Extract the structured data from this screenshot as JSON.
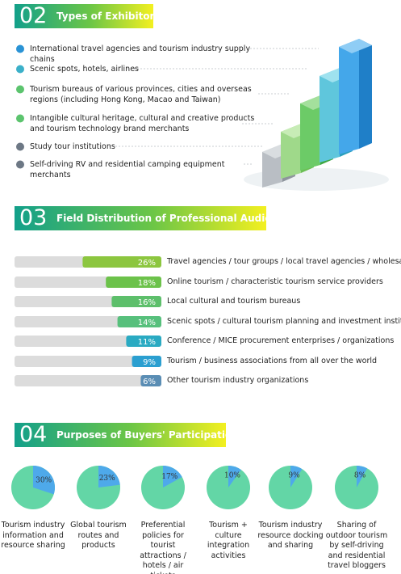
{
  "exhibitors": {
    "number": "02",
    "title": "Types of Exhibitors",
    "items": [
      "International travel agencies and tourism industry supply chains",
      "Scenic spots, hotels, airlines",
      "Tourism bureaus of various provinces, cities and overseas regions (including Hong Kong, Macao and Taiwan)",
      "Intangible cultural heritage, cultural and creative products and tourism technology brand merchants",
      "Study tour institutions",
      "Self-driving RV and residential camping equipment merchants"
    ],
    "bullet_colors": [
      "#2a93d5",
      "#3bb0c9",
      "#5cc46e",
      "#5cc46e",
      "#6d7885",
      "#6d7885"
    ]
  },
  "chart_data": [
    {
      "type": "bar",
      "number": "03",
      "title": "Field Distribution of Professional Audiences",
      "categories": [
        "Travel agencies / tour groups / local travel agencies / wholesalers",
        "Online tourism / characteristic tourism service providers",
        "Local cultural and tourism bureaus",
        "Scenic spots / cultural tourism planning and investment institutions",
        "Conference / MICE procurement enterprises / organizations",
        "Tourism / business associations from all over the world",
        "Other tourism industry organizations"
      ],
      "values": [
        26,
        18,
        16,
        14,
        11,
        9,
        6
      ],
      "value_labels": [
        "26%",
        "18%",
        "16%",
        "14%",
        "11%",
        "9%",
        "6%"
      ],
      "colors": [
        "#8cc63f",
        "#6cc24a",
        "#5dbf6b",
        "#57c07c",
        "#2aaac2",
        "#2b9fd0",
        "#5a8db4"
      ]
    },
    {
      "type": "pie",
      "number": "04",
      "title": "Purposes of Buyers' Participation",
      "categories": [
        "Tourism industry information and resource sharing",
        "Global tourism routes and products",
        "Preferential policies for tourist attractions / hotels / air tickets",
        "Tourism + culture integration activities",
        "Tourism industry resource docking and sharing",
        "Sharing of outdoor tourism by self-driving and residential travel bloggers"
      ],
      "values": [
        30,
        23,
        17,
        10,
        9,
        8
      ],
      "value_labels": [
        "30%",
        "23%",
        "17%",
        "10%",
        "9%",
        "8%"
      ],
      "color": "#4ea9ea",
      "rest_color": "#63d6a6"
    }
  ]
}
